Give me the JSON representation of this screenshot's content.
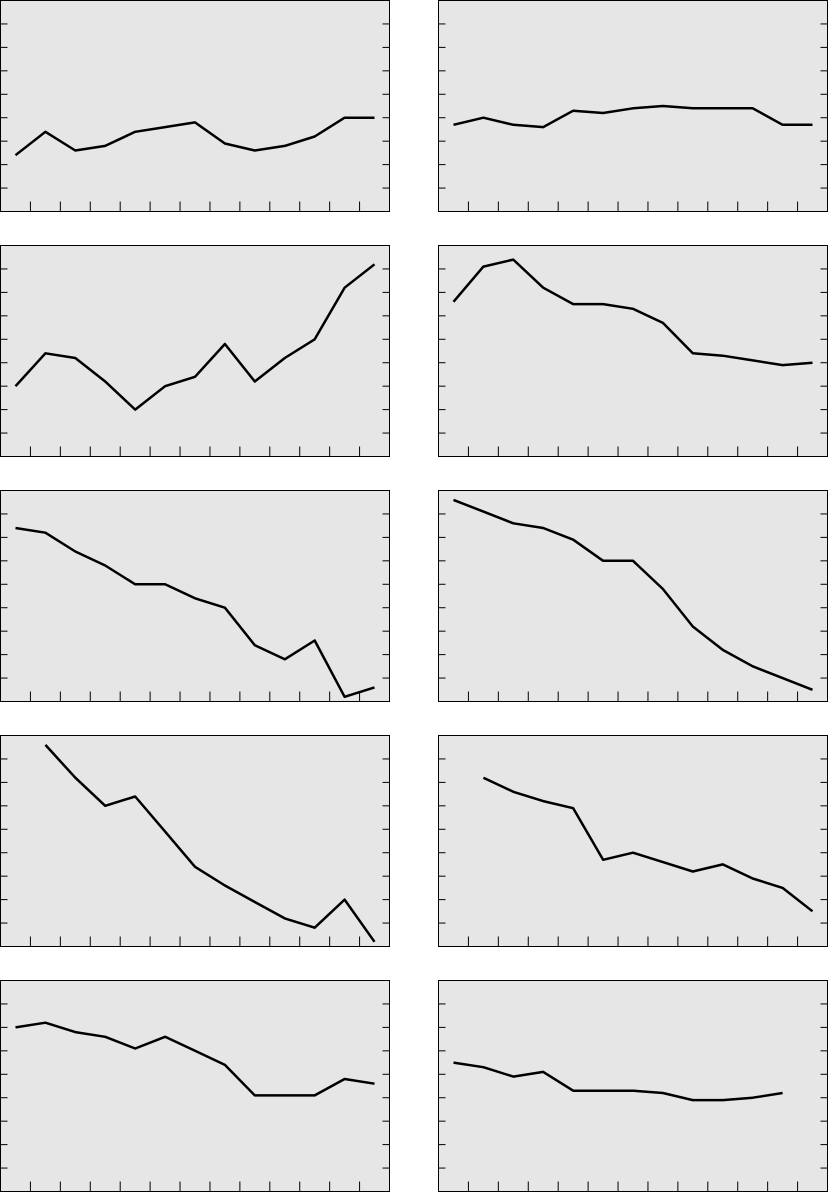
{
  "chart_data": [
    {
      "type": "line",
      "categories": [
        null,
        null,
        null,
        null,
        null,
        null,
        null,
        null,
        null,
        null,
        null,
        null,
        null
      ],
      "values": [
        2.4,
        3.4,
        2.6,
        2.8,
        3.4,
        3.6,
        3.8,
        2.9,
        2.6,
        2.8,
        3.2,
        4.0,
        4.0
      ],
      "ylim": [
        0,
        9
      ],
      "yticks": [
        1,
        2,
        3,
        4,
        5,
        6,
        7,
        8
      ],
      "color": "#000000",
      "background": "#e6e6e6"
    },
    {
      "type": "line",
      "categories": [
        null,
        null,
        null,
        null,
        null,
        null,
        null,
        null,
        null,
        null,
        null,
        null,
        null
      ],
      "values": [
        3.7,
        4.0,
        3.7,
        3.6,
        4.3,
        4.2,
        4.4,
        4.5,
        4.4,
        4.4,
        4.4,
        3.7,
        3.7
      ],
      "ylim": [
        0,
        9
      ],
      "yticks": [
        1,
        2,
        3,
        4,
        5,
        6,
        7,
        8
      ],
      "color": "#000000",
      "background": "#e6e6e6"
    },
    {
      "type": "line",
      "categories": [
        null,
        null,
        null,
        null,
        null,
        null,
        null,
        null,
        null,
        null,
        null,
        null,
        null
      ],
      "values": [
        3.0,
        4.4,
        4.2,
        3.2,
        2.0,
        3.0,
        3.4,
        4.8,
        3.2,
        4.2,
        5.0,
        7.2,
        8.2
      ],
      "ylim": [
        0,
        9
      ],
      "yticks": [
        1,
        2,
        3,
        4,
        5,
        6,
        7,
        8
      ],
      "color": "#000000",
      "background": "#e6e6e6"
    },
    {
      "type": "line",
      "categories": [
        null,
        null,
        null,
        null,
        null,
        null,
        null,
        null,
        null,
        null,
        null,
        null,
        null
      ],
      "values": [
        6.6,
        8.1,
        8.4,
        7.2,
        6.5,
        6.5,
        6.3,
        5.7,
        4.4,
        4.3,
        4.1,
        3.9,
        4.0
      ],
      "ylim": [
        0,
        9
      ],
      "yticks": [
        1,
        2,
        3,
        4,
        5,
        6,
        7,
        8
      ],
      "color": "#000000",
      "background": "#e6e6e6"
    },
    {
      "type": "line",
      "categories": [
        null,
        null,
        null,
        null,
        null,
        null,
        null,
        null,
        null,
        null,
        null,
        null,
        null
      ],
      "values": [
        7.4,
        7.2,
        6.4,
        5.8,
        5.0,
        5.0,
        4.4,
        4.0,
        2.4,
        1.8,
        2.6,
        0.2,
        0.6
      ],
      "ylim": [
        0,
        9
      ],
      "yticks": [
        1,
        2,
        3,
        4,
        5,
        6,
        7,
        8
      ],
      "color": "#000000",
      "background": "#e6e6e6"
    },
    {
      "type": "line",
      "categories": [
        null,
        null,
        null,
        null,
        null,
        null,
        null,
        null,
        null,
        null,
        null,
        null,
        null
      ],
      "values": [
        8.6,
        8.1,
        7.6,
        7.4,
        6.9,
        6.0,
        6.0,
        4.8,
        3.2,
        2.2,
        1.5,
        1.0,
        0.5
      ],
      "ylim": [
        0,
        9
      ],
      "yticks": [
        1,
        2,
        3,
        4,
        5,
        6,
        7,
        8
      ],
      "color": "#000000",
      "background": "#e6e6e6"
    },
    {
      "type": "line",
      "categories": [
        null,
        null,
        null,
        null,
        null,
        null,
        null,
        null,
        null,
        null,
        null,
        null,
        null
      ],
      "values": [
        null,
        8.6,
        7.2,
        6.0,
        6.4,
        4.9,
        3.4,
        2.6,
        1.9,
        1.2,
        0.8,
        2.0,
        0.2
      ],
      "ylim": [
        0,
        9
      ],
      "yticks": [
        1,
        2,
        3,
        4,
        5,
        6,
        7,
        8
      ],
      "color": "#000000",
      "background": "#e6e6e6"
    },
    {
      "type": "line",
      "categories": [
        null,
        null,
        null,
        null,
        null,
        null,
        null,
        null,
        null,
        null,
        null,
        null,
        null
      ],
      "values": [
        null,
        7.2,
        6.6,
        6.2,
        5.9,
        3.7,
        4.0,
        3.6,
        3.2,
        3.5,
        2.9,
        2.5,
        1.5
      ],
      "ylim": [
        0,
        9
      ],
      "yticks": [
        1,
        2,
        3,
        4,
        5,
        6,
        7,
        8
      ],
      "color": "#000000",
      "background": "#e6e6e6"
    },
    {
      "type": "line",
      "categories": [
        null,
        null,
        null,
        null,
        null,
        null,
        null,
        null,
        null,
        null,
        null,
        null,
        null
      ],
      "values": [
        7.0,
        7.2,
        6.8,
        6.6,
        6.1,
        6.6,
        6.0,
        5.4,
        4.1,
        4.1,
        4.1,
        4.8,
        4.6
      ],
      "ylim": [
        0,
        9
      ],
      "yticks": [
        1,
        2,
        3,
        4,
        5,
        6,
        7,
        8
      ],
      "color": "#000000",
      "background": "#e6e6e6"
    },
    {
      "type": "line",
      "categories": [
        null,
        null,
        null,
        null,
        null,
        null,
        null,
        null,
        null,
        null,
        null,
        null,
        null
      ],
      "values": [
        5.5,
        5.3,
        4.9,
        5.1,
        4.3,
        4.3,
        4.3,
        4.2,
        3.9,
        3.9,
        4.0,
        4.2,
        null
      ],
      "ylim": [
        0,
        9
      ],
      "yticks": [
        1,
        2,
        3,
        4,
        5,
        6,
        7,
        8
      ],
      "color": "#000000",
      "background": "#e6e6e6"
    }
  ]
}
